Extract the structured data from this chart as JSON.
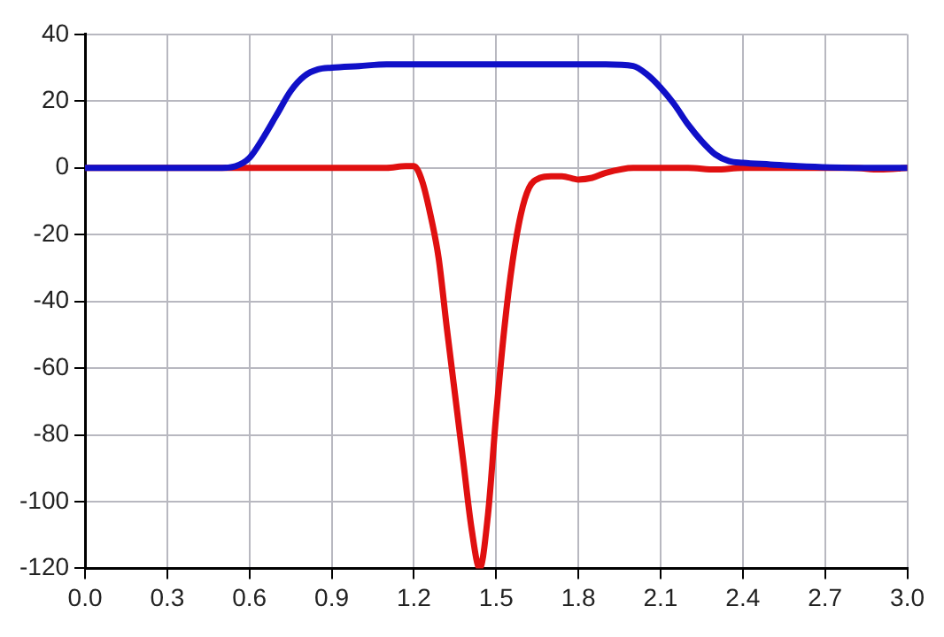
{
  "chart_data": {
    "type": "line",
    "xlim": [
      0,
      3
    ],
    "ylim": [
      -120,
      40
    ],
    "xticks": [
      {
        "value": 0,
        "label": "0.0"
      },
      0.3,
      0.6,
      0.9,
      1.2,
      1.5,
      1.8,
      2.1,
      2.4,
      2.7,
      {
        "value": 3,
        "label": "3.0"
      }
    ],
    "yticks": [
      -120,
      -100,
      -80,
      -60,
      -40,
      -20,
      0,
      20,
      40
    ],
    "grid": true,
    "legend": false,
    "marker": "none",
    "line_style": "solid",
    "series": [
      {
        "color": "#1010c8",
        "x": [
          0,
          0.3,
          0.5,
          0.55,
          0.6,
          0.65,
          0.7,
          0.75,
          0.8,
          0.85,
          0.9,
          1.0,
          1.1,
          1.3,
          1.6,
          1.9,
          2.0,
          2.05,
          2.1,
          2.15,
          2.2,
          2.25,
          2.3,
          2.35,
          2.4,
          2.5,
          2.6,
          2.8,
          3.0
        ],
        "values": [
          0,
          0,
          0,
          0.5,
          3,
          9,
          16,
          23,
          27.5,
          29.5,
          30,
          30.5,
          31,
          31,
          31,
          31,
          30.5,
          28,
          24,
          19,
          13,
          8,
          4,
          2,
          1.5,
          1,
          0.5,
          0,
          0
        ]
      },
      {
        "color": "#e01010",
        "x": [
          0,
          0.5,
          0.9,
          1.1,
          1.17,
          1.2,
          1.23,
          1.26,
          1.29,
          1.32,
          1.35,
          1.38,
          1.41,
          1.44,
          1.47,
          1.5,
          1.53,
          1.56,
          1.59,
          1.62,
          1.66,
          1.7,
          1.74,
          1.8,
          1.85,
          1.9,
          2.0,
          2.1,
          2.2,
          2.3,
          2.4,
          2.6,
          2.8,
          2.9,
          3.0
        ],
        "values": [
          0,
          0,
          0,
          0,
          0.5,
          0.5,
          -4,
          -14,
          -27,
          -48,
          -68,
          -88,
          -108,
          -120,
          -104,
          -74,
          -48,
          -28,
          -14,
          -6,
          -3,
          -2.5,
          -2.5,
          -3.5,
          -3,
          -1.5,
          0,
          0,
          0,
          -0.5,
          0,
          0,
          0,
          -0.5,
          0
        ]
      }
    ]
  }
}
